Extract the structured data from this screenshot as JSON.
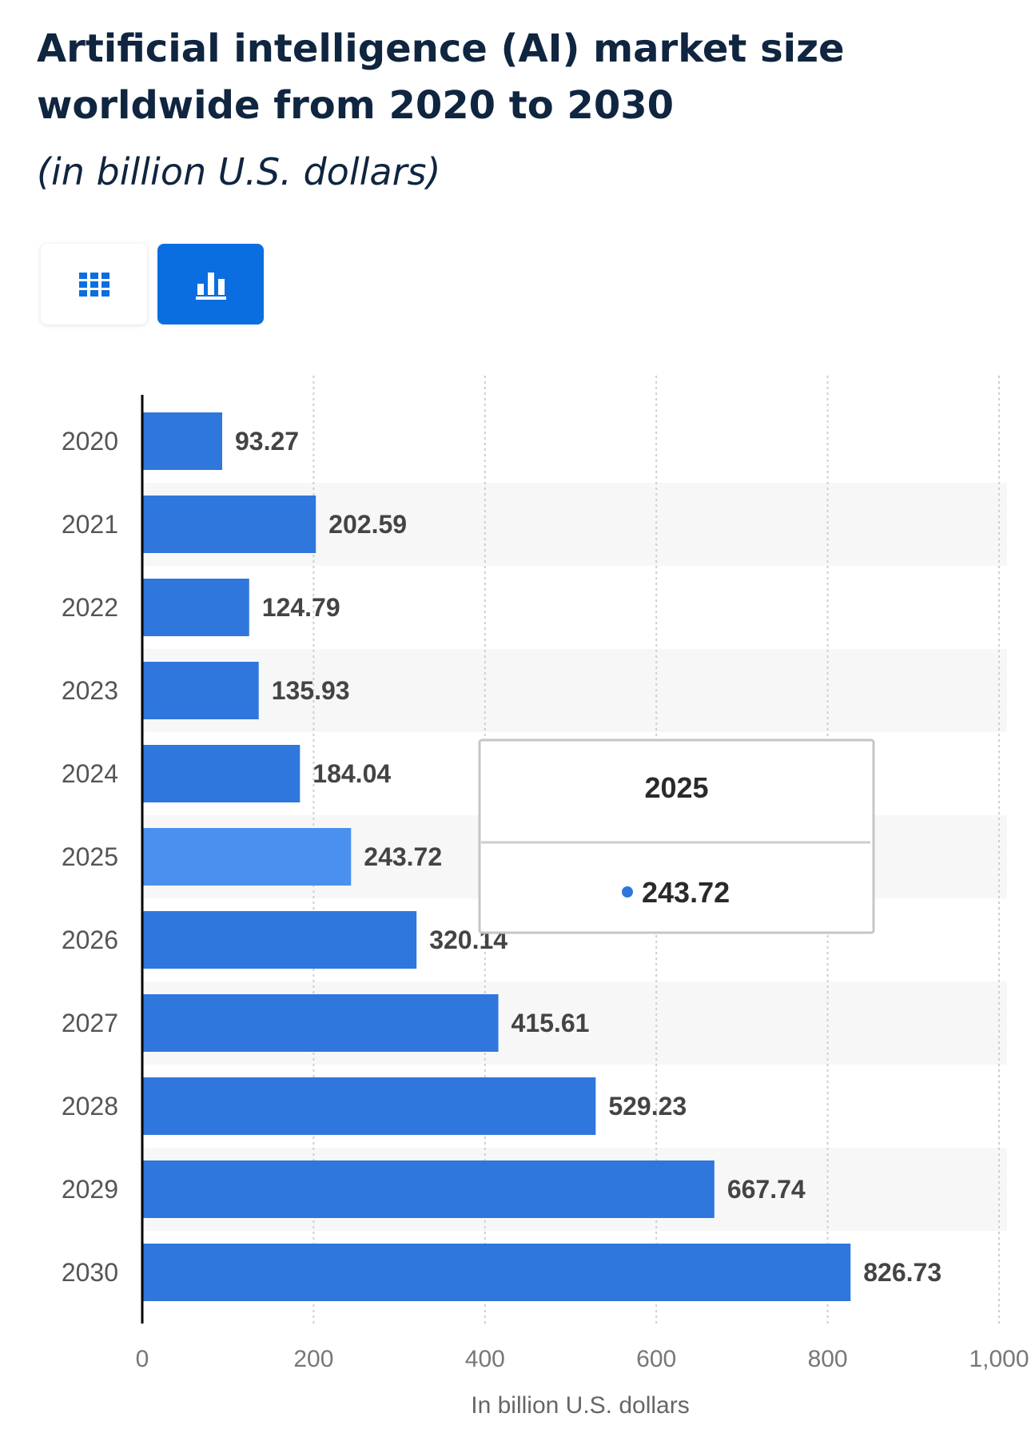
{
  "header": {
    "title": "Artificial intelligence (AI) market size worldwide from 2020 to 2030",
    "subtitle": "(in billion U.S. dollars)"
  },
  "view_toggle": {
    "table_icon": "grid-icon",
    "chart_icon": "bar-chart-icon",
    "active": "chart"
  },
  "colors": {
    "bar": "#2f77dc",
    "bar_highlight": "#4a90ee",
    "accent": "#0a6ee1",
    "stripe": "#f7f7f7"
  },
  "chart_data": {
    "type": "bar",
    "orientation": "horizontal",
    "categories": [
      "2020",
      "2021",
      "2022",
      "2023",
      "2024",
      "2025",
      "2026",
      "2027",
      "2028",
      "2029",
      "2030"
    ],
    "values": [
      93.27,
      202.59,
      124.79,
      135.93,
      184.04,
      243.72,
      320.14,
      415.61,
      529.23,
      667.74,
      826.73
    ],
    "value_labels": [
      "93.27",
      "202.59",
      "124.79",
      "135.93",
      "184.04",
      "243.72",
      "320.14",
      "415.61",
      "529.23",
      "667.74",
      "826.73"
    ],
    "xlabel": "In billion U.S. dollars",
    "xlim": [
      0,
      1000
    ],
    "xticks": [
      0,
      200,
      400,
      600,
      800,
      1000
    ],
    "xtick_labels": [
      "0",
      "200",
      "400",
      "600",
      "800",
      "1,000"
    ],
    "grid": true,
    "highlighted": "2025",
    "tooltip": {
      "title": "2025",
      "value": "243.72"
    }
  }
}
